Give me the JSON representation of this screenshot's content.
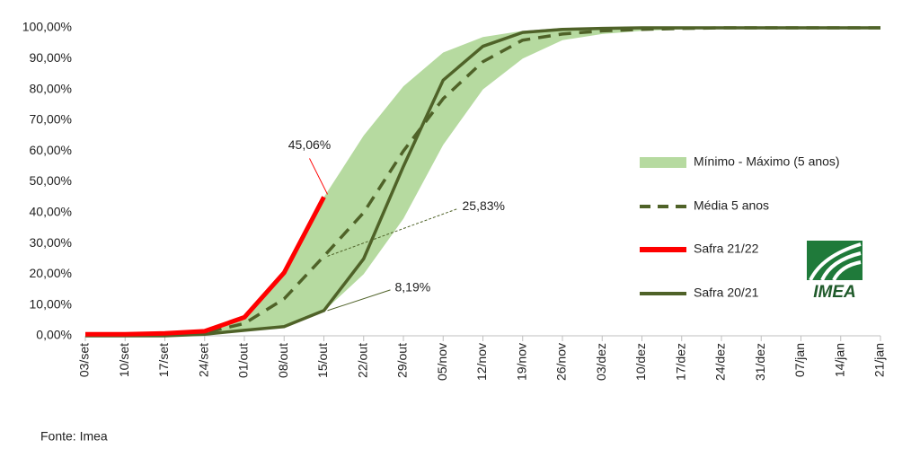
{
  "chart_data": {
    "type": "line",
    "categories": [
      "03/set",
      "10/set",
      "17/set",
      "24/set",
      "01/out",
      "08/out",
      "15/out",
      "22/out",
      "29/out",
      "05/nov",
      "12/nov",
      "19/nov",
      "26/nov",
      "03/dez",
      "10/dez",
      "17/dez",
      "24/dez",
      "31/dez",
      "07/jan",
      "14/jan",
      "21/jan"
    ],
    "band": {
      "name": "Mínimo - Máximo (5 anos)",
      "color": "#b6daa0",
      "lower": [
        0,
        0,
        0,
        0.5,
        1.5,
        3,
        8,
        20,
        38,
        62,
        80,
        90,
        96,
        98,
        99,
        99.5,
        100,
        100,
        100,
        100,
        100
      ],
      "upper": [
        0.5,
        0.5,
        0.8,
        1.5,
        6,
        20,
        45,
        65,
        81,
        92,
        97,
        99,
        100,
        100,
        100,
        100,
        100,
        100,
        100,
        100,
        100
      ]
    },
    "series": [
      {
        "name": "Média 5 anos",
        "color": "#4f6228",
        "dash": true,
        "values": [
          0.3,
          0.3,
          0.5,
          1,
          4,
          12,
          25.83,
          40,
          60,
          77,
          89,
          96,
          98,
          99,
          99.5,
          99.8,
          100,
          100,
          100,
          100,
          100
        ],
        "value_labels": [
          null,
          null,
          null,
          null,
          null,
          null,
          "25,83%",
          null,
          null,
          null,
          null,
          null,
          null,
          null,
          null,
          null,
          null,
          null,
          null,
          null,
          null
        ]
      },
      {
        "name": "Safra 21/22",
        "color": "#ff0000",
        "dash": false,
        "values": [
          0.5,
          0.5,
          0.8,
          1.5,
          6,
          20.5,
          45.06,
          null,
          null,
          null,
          null,
          null,
          null,
          null,
          null,
          null,
          null,
          null,
          null,
          null,
          null
        ],
        "value_labels": [
          null,
          null,
          null,
          null,
          null,
          null,
          "45,06%",
          null,
          null,
          null,
          null,
          null,
          null,
          null,
          null,
          null,
          null,
          null,
          null,
          null,
          null
        ]
      },
      {
        "name": "Safra 20/21",
        "color": "#4f6228",
        "dash": false,
        "values": [
          0,
          0,
          0,
          0.5,
          1.8,
          3,
          8.19,
          25,
          55,
          83,
          94,
          98.5,
          99.5,
          99.8,
          100,
          100,
          100,
          100,
          100,
          100,
          100
        ],
        "value_labels": [
          null,
          null,
          null,
          null,
          null,
          null,
          "8,19%",
          null,
          null,
          null,
          null,
          null,
          null,
          null,
          null,
          null,
          null,
          null,
          null,
          null,
          null
        ]
      }
    ],
    "ylim": [
      0,
      100
    ],
    "yticks": [
      {
        "value": 0,
        "label": "0,00%"
      },
      {
        "value": 10,
        "label": "10,00%"
      },
      {
        "value": 20,
        "label": "20,00%"
      },
      {
        "value": 30,
        "label": "30,00%"
      },
      {
        "value": 40,
        "label": "40,00%"
      },
      {
        "value": 50,
        "label": "50,00%"
      },
      {
        "value": 60,
        "label": "60,00%"
      },
      {
        "value": 70,
        "label": "70,00%"
      },
      {
        "value": 80,
        "label": "80,00%"
      },
      {
        "value": 90,
        "label": "90,00%"
      },
      {
        "value": 100,
        "label": "100,00%"
      }
    ],
    "source": "Fonte: Imea",
    "logo": "IMEA"
  }
}
